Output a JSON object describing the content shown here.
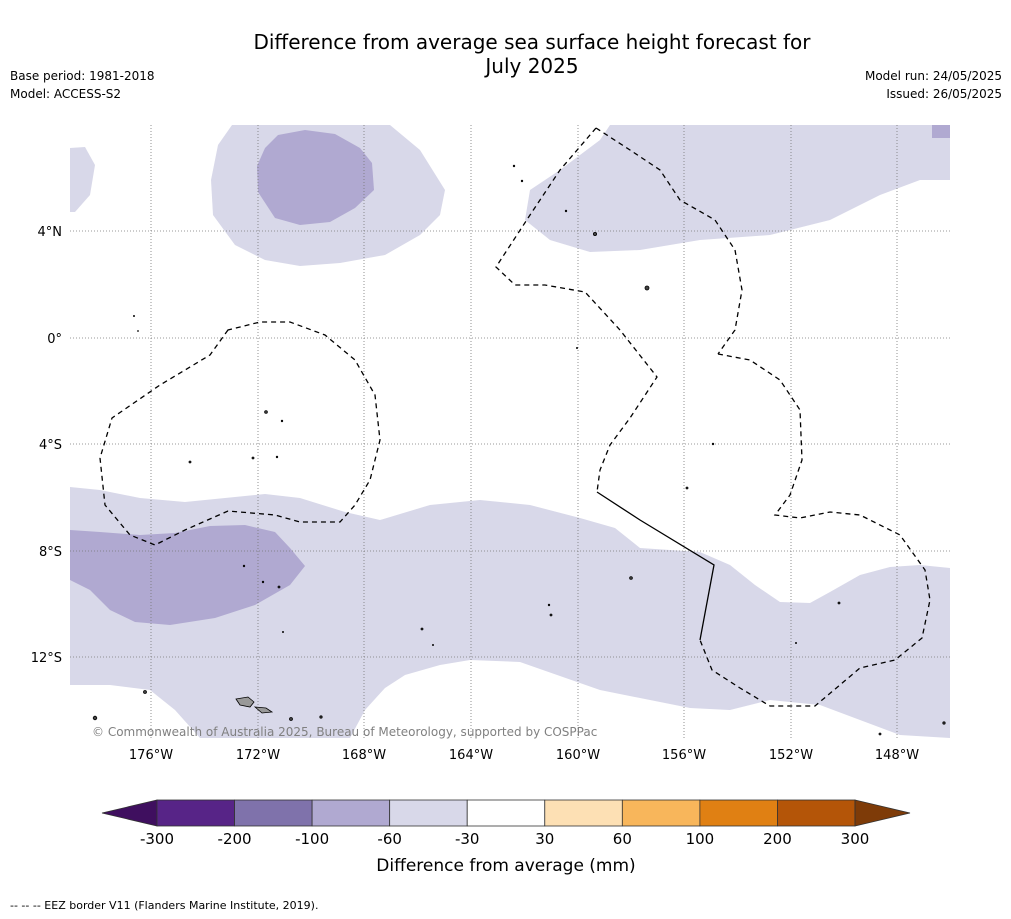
{
  "title_line1": "Difference from average sea surface height forecast for",
  "title_line2": "July 2025",
  "base_period": "Base period: 1981-2018",
  "model": "Model: ACCESS-S2",
  "model_run": "Model run: 24/05/2025",
  "issued": "Issued: 26/05/2025",
  "copyright": "© Commonwealth of Australia 2025, Bureau of Meteorology, supported by COSPPac",
  "lat_labels": [
    "4°N",
    "0°",
    "4°S",
    "8°S",
    "12°S"
  ],
  "lon_labels": [
    "176°W",
    "172°W",
    "168°W",
    "164°W",
    "160°W",
    "156°W",
    "152°W",
    "148°W"
  ],
  "colorbar": {
    "title": "Difference from average (mm)",
    "tick_labels": [
      "-300",
      "-200",
      "-100",
      "-60",
      "-30",
      "30",
      "60",
      "100",
      "200",
      "300"
    ],
    "colors": [
      "#3f0f5f",
      "#572487",
      "#7f72ab",
      "#b0a9d1",
      "#d8d8e9",
      "#ffffff",
      "#fde0b4",
      "#f8b65b",
      "#e08013",
      "#b45508",
      "#7e3b08"
    ]
  },
  "footer": "-- -- -- EEZ border V11 (Flanders Marine Institute, 2019)."
}
